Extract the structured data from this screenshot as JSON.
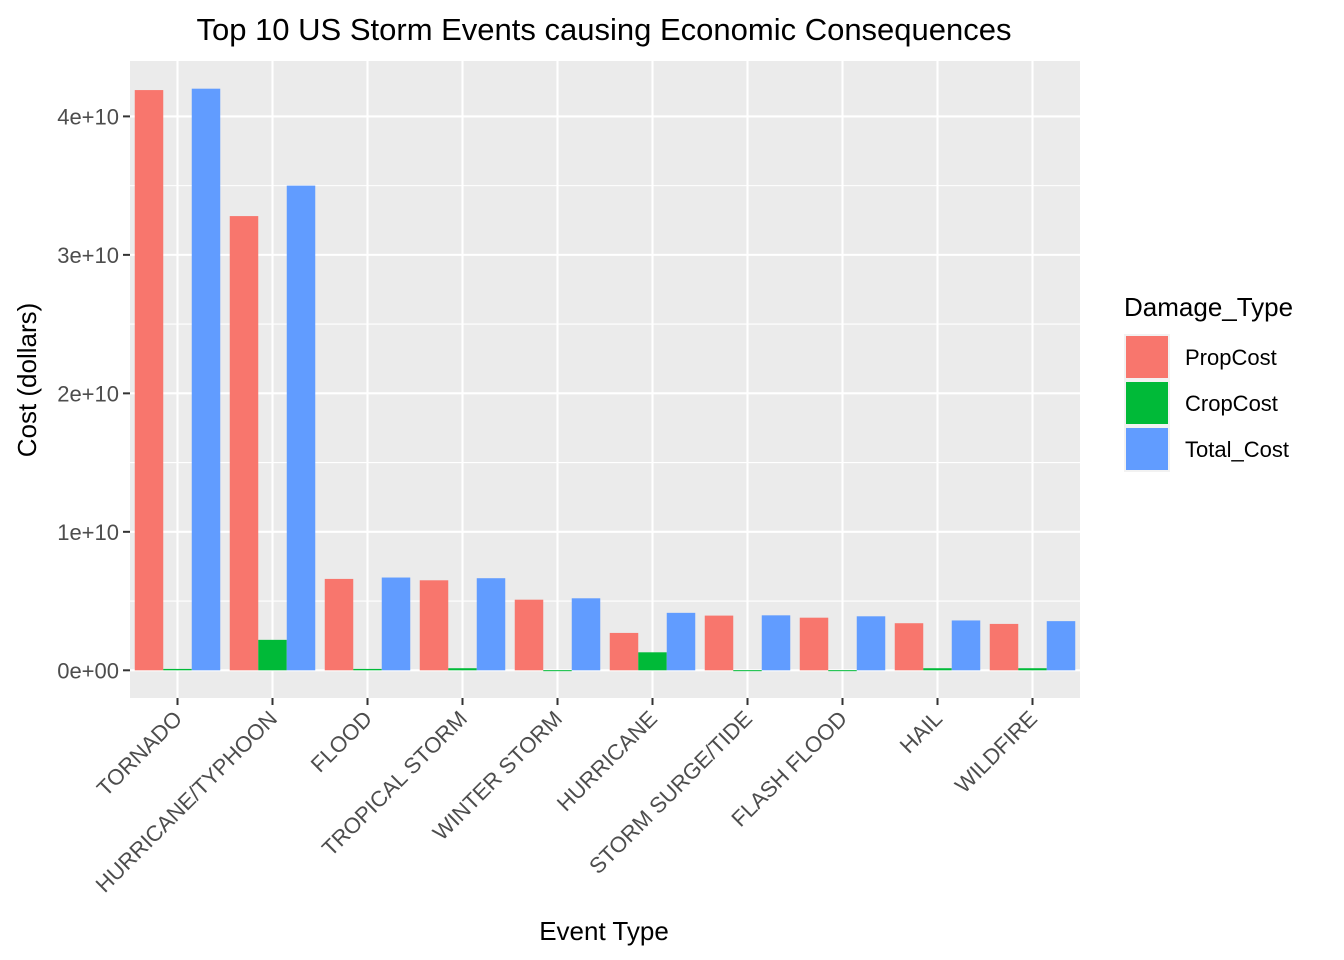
{
  "chart_data": {
    "type": "bar",
    "title": "Top 10 US Storm Events causing Economic Consequences",
    "xlabel": "Event Type",
    "ylabel": "Cost (dollars)",
    "categories": [
      "TORNADO",
      "HURRICANE/TYPHOON",
      "FLOOD",
      "TROPICAL STORM",
      "WINTER STORM",
      "HURRICANE",
      "STORM SURGE/TIDE",
      "FLASH FLOOD",
      "HAIL",
      "WILDFIRE"
    ],
    "series": [
      {
        "name": "PropCost",
        "color": "#F8766D",
        "values": [
          41900000000,
          32800000000,
          6600000000,
          6500000000,
          5100000000,
          2700000000,
          3950000000,
          3800000000,
          3400000000,
          3350000000
        ]
      },
      {
        "name": "CropCost",
        "color": "#00BA38",
        "values": [
          100000000,
          2200000000,
          100000000,
          150000000,
          10000000,
          1300000000,
          10000000,
          10000000,
          150000000,
          150000000
        ]
      },
      {
        "name": "Total_Cost",
        "color": "#619CFF",
        "values": [
          42000000000,
          35000000000,
          6700000000,
          6650000000,
          5200000000,
          4150000000,
          3970000000,
          3900000000,
          3600000000,
          3550000000
        ]
      }
    ],
    "ylim": [
      -2000000000,
      44000000000
    ],
    "y_ticks": [
      {
        "value": 0,
        "label": "0e+00"
      },
      {
        "value": 10000000000,
        "label": "1e+10"
      },
      {
        "value": 20000000000,
        "label": "2e+10"
      },
      {
        "value": 30000000000,
        "label": "3e+10"
      },
      {
        "value": 40000000000,
        "label": "4e+10"
      }
    ],
    "grid": true,
    "legend": {
      "title": "Damage_Type",
      "placement": "right"
    }
  }
}
